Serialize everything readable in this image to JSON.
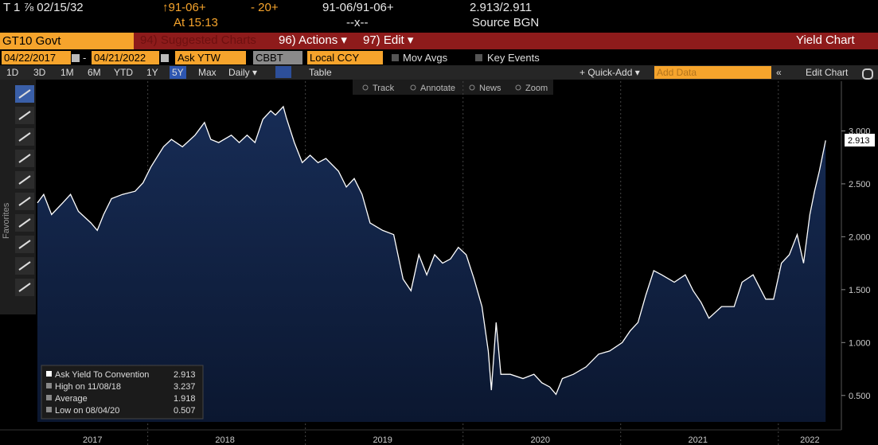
{
  "header": {
    "security": "T 1 ⅞ 02/15/32",
    "price": "↑91-06+",
    "change": "- 20+",
    "bid_ask": "91-06/91-06+",
    "yields": "2.913/2.911",
    "time": "At 15:13",
    "size": "--x--",
    "source": "Source BGN"
  },
  "menu": {
    "ticker": "GT10 Govt",
    "items": [
      "94) Suggested Charts",
      "96) Actions ▾",
      "97) Edit ▾"
    ],
    "title": "Yield Chart"
  },
  "settings": {
    "start": "04/22/2017",
    "date_separator": "-",
    "end": "04/21/2022",
    "field": "Ask YTW",
    "pricing_source": "CBBT",
    "currency": "Local CCY",
    "toggles": [
      "Mov Avgs",
      "Key Events"
    ]
  },
  "toolbar": {
    "periods": [
      "1D",
      "3D",
      "1M",
      "6M",
      "YTD",
      "1Y",
      "5Y",
      "Max"
    ],
    "selected_period": 6,
    "frequency": "Daily ▾",
    "table": "Table",
    "quick_add": "+ Quick-Add ▾",
    "add_data": "Add Data",
    "collapse": "«",
    "edit_chart": "Edit Chart"
  },
  "chart_tools": [
    "Track",
    "Annotate",
    "News",
    "Zoom"
  ],
  "favorites": "Favorites",
  "chart_data": {
    "type": "area",
    "color": "#ffffff",
    "fill": "#172c55",
    "x": [
      2017.3,
      2017.34,
      2017.39,
      2017.46,
      2017.51,
      2017.56,
      2017.64,
      2017.68,
      2017.72,
      2017.77,
      2017.84,
      2017.92,
      2017.97,
      2018.02,
      2018.1,
      2018.15,
      2018.22,
      2018.3,
      2018.36,
      2018.4,
      2018.45,
      2018.53,
      2018.58,
      2018.63,
      2018.68,
      2018.73,
      2018.78,
      2018.81,
      2018.86,
      2018.88,
      2018.93,
      2018.98,
      2019.03,
      2019.08,
      2019.13,
      2019.21,
      2019.26,
      2019.31,
      2019.36,
      2019.41,
      2019.49,
      2019.56,
      2019.62,
      2019.67,
      2019.72,
      2019.77,
      2019.82,
      2019.87,
      2019.92,
      2019.97,
      2020.02,
      2020.07,
      2020.12,
      2020.16,
      2020.18,
      2020.21,
      2020.24,
      2020.3,
      2020.38,
      2020.45,
      2020.5,
      2020.55,
      2020.59,
      2020.63,
      2020.7,
      2020.78,
      2020.86,
      2020.93,
      2021.01,
      2021.06,
      2021.11,
      2021.16,
      2021.21,
      2021.26,
      2021.34,
      2021.41,
      2021.46,
      2021.51,
      2021.56,
      2021.64,
      2021.72,
      2021.77,
      2021.84,
      2021.92,
      2021.97,
      2022.02,
      2022.07,
      2022.12,
      2022.16,
      2022.2,
      2022.23,
      2022.26,
      2022.3
    ],
    "values": [
      2.32,
      2.4,
      2.21,
      2.32,
      2.4,
      2.24,
      2.13,
      2.06,
      2.21,
      2.36,
      2.4,
      2.43,
      2.51,
      2.66,
      2.85,
      2.92,
      2.85,
      2.96,
      3.08,
      2.92,
      2.89,
      2.96,
      2.89,
      2.96,
      2.89,
      3.11,
      3.19,
      3.15,
      3.23,
      3.12,
      2.89,
      2.7,
      2.77,
      2.7,
      2.74,
      2.62,
      2.47,
      2.55,
      2.4,
      2.13,
      2.06,
      2.02,
      1.6,
      1.49,
      1.83,
      1.64,
      1.83,
      1.75,
      1.79,
      1.9,
      1.83,
      1.6,
      1.34,
      0.92,
      0.55,
      1.19,
      0.7,
      0.7,
      0.66,
      0.7,
      0.62,
      0.58,
      0.51,
      0.66,
      0.7,
      0.77,
      0.89,
      0.92,
      1.0,
      1.11,
      1.19,
      1.45,
      1.68,
      1.64,
      1.57,
      1.64,
      1.49,
      1.38,
      1.23,
      1.34,
      1.34,
      1.57,
      1.64,
      1.41,
      1.41,
      1.75,
      1.83,
      2.02,
      1.75,
      2.21,
      2.43,
      2.62,
      2.91
    ],
    "xlim": [
      2017.29,
      2022.4
    ],
    "xticks": [
      {
        "value": 2017.65,
        "label": "2017"
      },
      {
        "value": 2018.49,
        "label": "2018"
      },
      {
        "value": 2019.49,
        "label": "2019"
      },
      {
        "value": 2020.49,
        "label": "2020"
      },
      {
        "value": 2021.49,
        "label": "2021"
      },
      {
        "value": 2022.2,
        "label": "2022"
      }
    ],
    "xgrid": [
      2018,
      2019,
      2020,
      2021,
      2022
    ],
    "ylim": [
      0.25,
      3.47
    ],
    "yticks": [
      {
        "value": 3,
        "label": "3.000"
      },
      {
        "value": 2.5,
        "label": "2.500"
      },
      {
        "value": 2,
        "label": "2.000"
      },
      {
        "value": 1.5,
        "label": "1.500"
      },
      {
        "value": 1,
        "label": "1.000"
      },
      {
        "value": 0.5,
        "label": "0.500"
      }
    ],
    "legend": [
      {
        "label": "Ask Yield To Convention",
        "value": 2.913
      },
      {
        "label": "High on 11/08/18",
        "value": 3.237
      },
      {
        "label": "Average",
        "value": 1.918
      },
      {
        "label": "Low on 08/04/20",
        "value": 0.507
      }
    ],
    "last_value": 2.913
  }
}
